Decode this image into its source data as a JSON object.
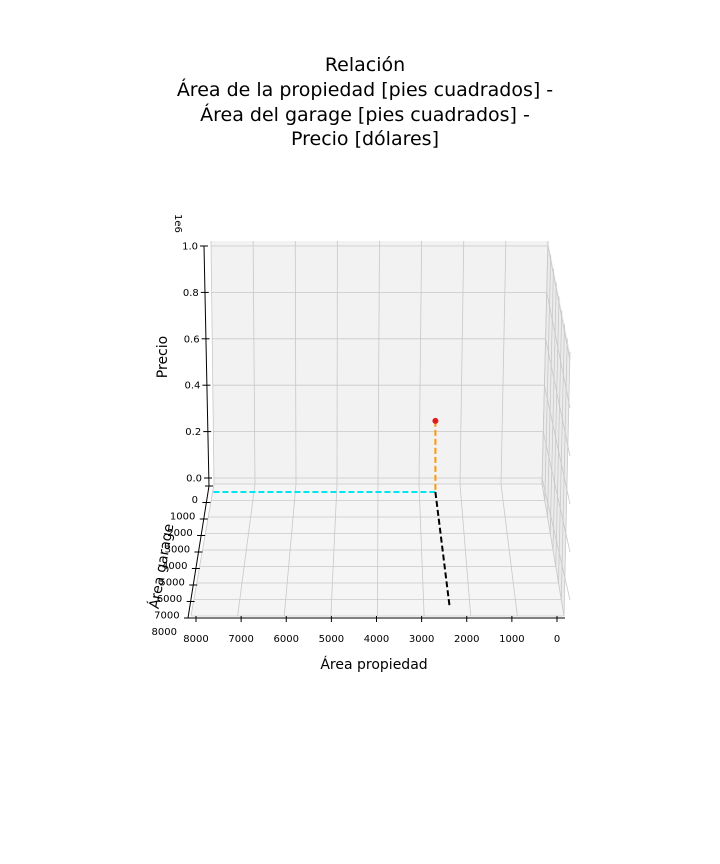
{
  "chart_data": {
    "type": "scatter3d",
    "title_lines": [
      "Relación",
      "Área de la propiedad [pies cuadrados] -",
      "Área del garage [pies cuadrados] -",
      "Precio [dólares]"
    ],
    "xlabel": "Área propiedad",
    "ylabel": "Área garage",
    "zlabel": "Precio",
    "z_offset_label": "1e6",
    "x_ticks": [
      "8000",
      "7000",
      "6000",
      "5000",
      "4000",
      "3000",
      "2000",
      "1000",
      "0"
    ],
    "y_ticks": [
      "0",
      "1000",
      "2000",
      "3000",
      "4000",
      "5000",
      "6000",
      "7000",
      "8000"
    ],
    "z_ticks": [
      "0.0",
      "0.2",
      "0.4",
      "0.6",
      "0.8",
      "1.0"
    ],
    "xlim": [
      0,
      8000
    ],
    "ylim": [
      0,
      8000
    ],
    "zlim": [
      0,
      1000000
    ],
    "grid": true,
    "point": {
      "x": 2600,
      "y": 0,
      "z": 260000
    },
    "colors": {
      "point": "#e31a1c",
      "vertical_guide": "#ff9900",
      "x_guide": "#00e5ee",
      "y_guide": "#000000",
      "pane": "#f2f2f2",
      "floor": "#f5f5f5",
      "grid": "#c8c8c8"
    }
  }
}
